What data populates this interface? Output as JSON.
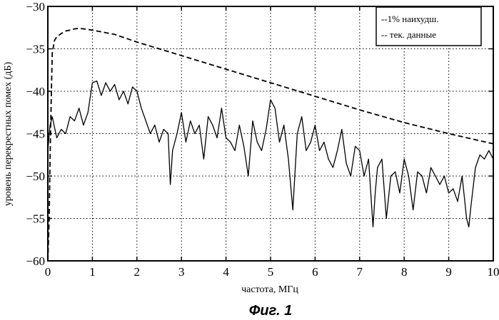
{
  "chart_data": {
    "type": "line",
    "xlabel": "частота, МГц",
    "ylabel": "уровень перекрестных помех (дБ)",
    "xlim": [
      0,
      10
    ],
    "ylim": [
      -60,
      -30
    ],
    "xticks": [
      0,
      1,
      2,
      3,
      4,
      5,
      6,
      7,
      8,
      9,
      10
    ],
    "yticks": [
      -30,
      -35,
      -40,
      -45,
      -50,
      -55,
      -60
    ],
    "grid": true,
    "legend_position": "top-right",
    "series": [
      {
        "name": "--1% наихудш.",
        "style": "dashed",
        "color": "#000000",
        "x": [
          0.0,
          0.03,
          0.05,
          0.08,
          0.1,
          0.15,
          0.2,
          0.3,
          0.4,
          0.5,
          0.6,
          0.7,
          0.8,
          1.0,
          1.5,
          2.0,
          3.0,
          4.0,
          5.0,
          6.0,
          7.0,
          8.0,
          9.0,
          10.0
        ],
        "y": [
          -60.0,
          -55.0,
          -48.0,
          -40.0,
          -35.5,
          -34.0,
          -33.6,
          -33.2,
          -32.9,
          -32.8,
          -32.65,
          -32.6,
          -32.65,
          -32.8,
          -33.3,
          -34.2,
          -35.8,
          -37.4,
          -39.0,
          -40.6,
          -42.2,
          -43.7,
          -45.0,
          -46.2
        ]
      },
      {
        "name": "-- тек. данные",
        "style": "solid",
        "color": "#000000",
        "x": [
          0.0,
          0.05,
          0.1,
          0.2,
          0.3,
          0.4,
          0.5,
          0.6,
          0.7,
          0.8,
          0.9,
          1.0,
          1.1,
          1.2,
          1.3,
          1.4,
          1.5,
          1.6,
          1.7,
          1.8,
          1.9,
          2.0,
          2.1,
          2.2,
          2.3,
          2.4,
          2.5,
          2.6,
          2.7,
          2.75,
          2.8,
          2.9,
          3.0,
          3.1,
          3.2,
          3.3,
          3.4,
          3.5,
          3.6,
          3.7,
          3.8,
          3.9,
          4.0,
          4.1,
          4.2,
          4.3,
          4.4,
          4.5,
          4.6,
          4.7,
          4.8,
          4.9,
          5.0,
          5.1,
          5.2,
          5.3,
          5.4,
          5.5,
          5.6,
          5.7,
          5.8,
          5.9,
          6.0,
          6.1,
          6.2,
          6.3,
          6.4,
          6.5,
          6.6,
          6.7,
          6.8,
          6.9,
          7.0,
          7.1,
          7.2,
          7.3,
          7.35,
          7.4,
          7.5,
          7.6,
          7.7,
          7.8,
          7.9,
          8.0,
          8.1,
          8.2,
          8.3,
          8.4,
          8.5,
          8.6,
          8.7,
          8.8,
          8.9,
          9.0,
          9.1,
          9.2,
          9.3,
          9.4,
          9.45,
          9.5,
          9.6,
          9.7,
          9.8,
          9.9,
          10.0
        ],
        "y": [
          -47.0,
          -44.0,
          -43.0,
          -45.5,
          -44.5,
          -45.0,
          -43.0,
          -43.5,
          -42.0,
          -44.0,
          -42.5,
          -39.0,
          -38.8,
          -40.5,
          -39.0,
          -40.0,
          -39.2,
          -41.0,
          -40.0,
          -41.5,
          -39.5,
          -40.0,
          -42.0,
          -43.5,
          -45.0,
          -44.0,
          -46.0,
          -44.5,
          -45.0,
          -51.0,
          -47.0,
          -45.0,
          -42.5,
          -46.0,
          -43.5,
          -45.0,
          -44.0,
          -48.0,
          -43.0,
          -44.0,
          -45.5,
          -42.0,
          -45.5,
          -46.0,
          -47.0,
          -44.0,
          -46.5,
          -50.0,
          -43.5,
          -46.0,
          -47.0,
          -44.5,
          -41.0,
          -42.0,
          -46.0,
          -44.0,
          -48.0,
          -54.0,
          -45.0,
          -43.0,
          -47.0,
          -46.0,
          -44.0,
          -47.0,
          -46.0,
          -48.0,
          -49.0,
          -47.0,
          -44.5,
          -48.5,
          -50.0,
          -46.5,
          -47.0,
          -50.0,
          -48.0,
          -56.0,
          -52.0,
          -49.0,
          -48.0,
          -55.0,
          -50.0,
          -49.5,
          -52.0,
          -48.0,
          -50.0,
          -54.0,
          -49.5,
          -50.0,
          -52.0,
          -49.0,
          -50.0,
          -51.0,
          -50.0,
          -52.0,
          -51.5,
          -53.0,
          -50.0,
          -55.0,
          -56.0,
          -53.5,
          -49.0,
          -47.5,
          -48.0,
          -47.0,
          -48.0
        ]
      }
    ]
  },
  "caption": "Фиг. 1"
}
